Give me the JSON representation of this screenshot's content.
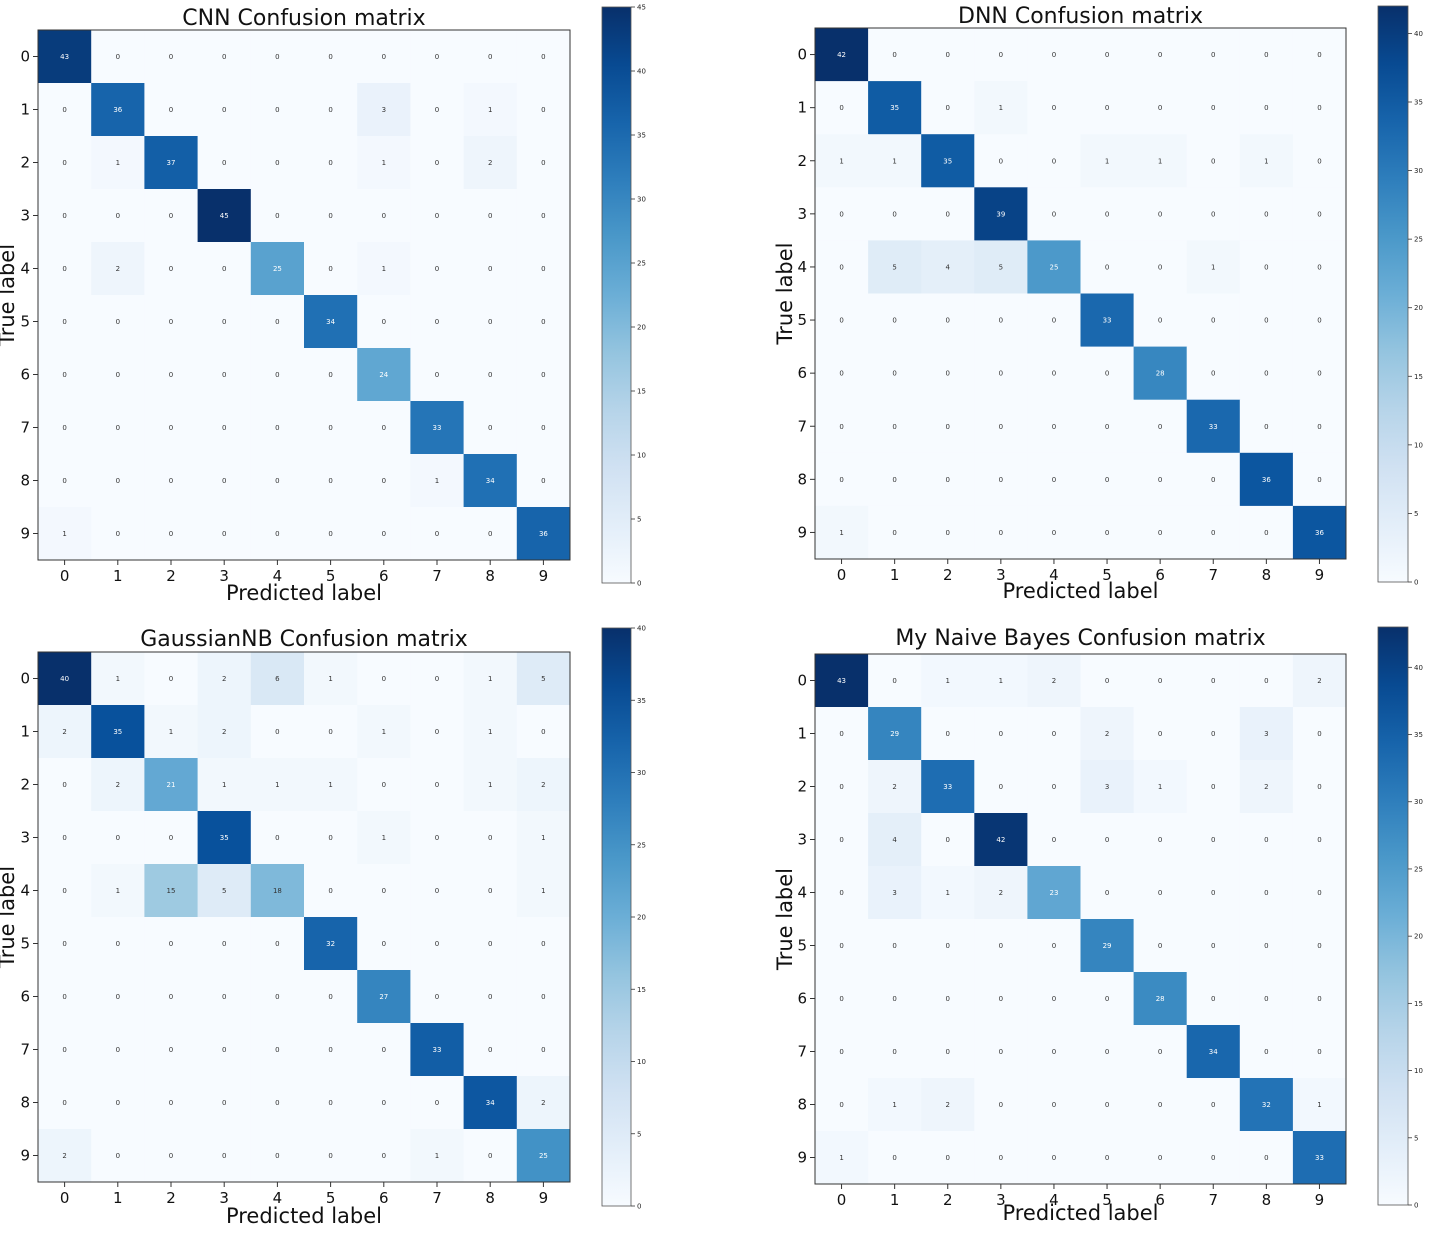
{
  "figure": {
    "xlabel": "Predicted label",
    "ylabel": "True label"
  },
  "chart_data": [
    {
      "type": "heatmap",
      "title": "CNN Confusion matrix",
      "xlabel": "Predicted label",
      "ylabel": "True label",
      "x_categories": [
        "0",
        "1",
        "2",
        "3",
        "4",
        "5",
        "6",
        "7",
        "8",
        "9"
      ],
      "y_categories": [
        "0",
        "1",
        "2",
        "3",
        "4",
        "5",
        "6",
        "7",
        "8",
        "9"
      ],
      "values": [
        [
          43,
          0,
          0,
          0,
          0,
          0,
          0,
          0,
          0,
          0
        ],
        [
          0,
          36,
          0,
          0,
          0,
          0,
          3,
          0,
          1,
          0
        ],
        [
          0,
          1,
          37,
          0,
          0,
          0,
          1,
          0,
          2,
          0
        ],
        [
          0,
          0,
          0,
          45,
          0,
          0,
          0,
          0,
          0,
          0
        ],
        [
          0,
          2,
          0,
          0,
          25,
          0,
          1,
          0,
          0,
          0
        ],
        [
          0,
          0,
          0,
          0,
          0,
          34,
          0,
          0,
          0,
          0
        ],
        [
          0,
          0,
          0,
          0,
          0,
          0,
          24,
          0,
          0,
          0
        ],
        [
          0,
          0,
          0,
          0,
          0,
          0,
          0,
          33,
          0,
          0
        ],
        [
          0,
          0,
          0,
          0,
          0,
          0,
          0,
          1,
          34,
          0
        ],
        [
          1,
          0,
          0,
          0,
          0,
          0,
          0,
          0,
          0,
          36
        ]
      ],
      "colorbar": {
        "min": 0,
        "max": 45,
        "ticks": [
          0,
          5,
          10,
          15,
          20,
          25,
          30,
          35,
          40,
          45
        ]
      }
    },
    {
      "type": "heatmap",
      "title": "DNN Confusion matrix",
      "xlabel": "Predicted label",
      "ylabel": "True label",
      "x_categories": [
        "0",
        "1",
        "2",
        "3",
        "4",
        "5",
        "6",
        "7",
        "8",
        "9"
      ],
      "y_categories": [
        "0",
        "1",
        "2",
        "3",
        "4",
        "5",
        "6",
        "7",
        "8",
        "9"
      ],
      "values": [
        [
          42,
          0,
          0,
          0,
          0,
          0,
          0,
          0,
          0,
          0
        ],
        [
          0,
          35,
          0,
          1,
          0,
          0,
          0,
          0,
          0,
          0
        ],
        [
          1,
          1,
          35,
          0,
          0,
          1,
          1,
          0,
          1,
          0
        ],
        [
          0,
          0,
          0,
          39,
          0,
          0,
          0,
          0,
          0,
          0
        ],
        [
          0,
          5,
          4,
          5,
          25,
          0,
          0,
          1,
          0,
          0
        ],
        [
          0,
          0,
          0,
          0,
          0,
          33,
          0,
          0,
          0,
          0
        ],
        [
          0,
          0,
          0,
          0,
          0,
          0,
          28,
          0,
          0,
          0
        ],
        [
          0,
          0,
          0,
          0,
          0,
          0,
          0,
          33,
          0,
          0
        ],
        [
          0,
          0,
          0,
          0,
          0,
          0,
          0,
          0,
          36,
          0
        ],
        [
          1,
          0,
          0,
          0,
          0,
          0,
          0,
          0,
          0,
          36
        ]
      ],
      "colorbar": {
        "min": 0,
        "max": 42,
        "ticks": [
          0,
          5,
          10,
          15,
          20,
          25,
          30,
          35,
          40
        ]
      }
    },
    {
      "type": "heatmap",
      "title": "GaussianNB Confusion matrix",
      "xlabel": "Predicted label",
      "ylabel": "True label",
      "x_categories": [
        "0",
        "1",
        "2",
        "3",
        "4",
        "5",
        "6",
        "7",
        "8",
        "9"
      ],
      "y_categories": [
        "0",
        "1",
        "2",
        "3",
        "4",
        "5",
        "6",
        "7",
        "8",
        "9"
      ],
      "values": [
        [
          40,
          1,
          0,
          2,
          6,
          1,
          0,
          0,
          1,
          5
        ],
        [
          2,
          35,
          1,
          2,
          0,
          0,
          1,
          0,
          1,
          0
        ],
        [
          0,
          2,
          21,
          1,
          1,
          1,
          0,
          0,
          1,
          2
        ],
        [
          0,
          0,
          0,
          35,
          0,
          0,
          1,
          0,
          0,
          1
        ],
        [
          0,
          1,
          15,
          5,
          18,
          0,
          0,
          0,
          0,
          1
        ],
        [
          0,
          0,
          0,
          0,
          0,
          32,
          0,
          0,
          0,
          0
        ],
        [
          0,
          0,
          0,
          0,
          0,
          0,
          27,
          0,
          0,
          0
        ],
        [
          0,
          0,
          0,
          0,
          0,
          0,
          0,
          33,
          0,
          0
        ],
        [
          0,
          0,
          0,
          0,
          0,
          0,
          0,
          0,
          34,
          2
        ],
        [
          2,
          0,
          0,
          0,
          0,
          0,
          0,
          1,
          0,
          25
        ]
      ],
      "colorbar": {
        "min": 0,
        "max": 40,
        "ticks": [
          0,
          5,
          10,
          15,
          20,
          25,
          30,
          35,
          40
        ]
      }
    },
    {
      "type": "heatmap",
      "title": "My Naive Bayes Confusion matrix",
      "xlabel": "Predicted label",
      "ylabel": "True label",
      "x_categories": [
        "0",
        "1",
        "2",
        "3",
        "4",
        "5",
        "6",
        "7",
        "8",
        "9"
      ],
      "y_categories": [
        "0",
        "1",
        "2",
        "3",
        "4",
        "5",
        "6",
        "7",
        "8",
        "9"
      ],
      "values": [
        [
          43,
          0,
          1,
          1,
          2,
          0,
          0,
          0,
          0,
          2
        ],
        [
          0,
          29,
          0,
          0,
          0,
          2,
          0,
          0,
          3,
          0
        ],
        [
          0,
          2,
          33,
          0,
          0,
          3,
          1,
          0,
          2,
          0
        ],
        [
          0,
          4,
          0,
          42,
          0,
          0,
          0,
          0,
          0,
          0
        ],
        [
          0,
          3,
          1,
          2,
          23,
          0,
          0,
          0,
          0,
          0
        ],
        [
          0,
          0,
          0,
          0,
          0,
          29,
          0,
          0,
          0,
          0
        ],
        [
          0,
          0,
          0,
          0,
          0,
          0,
          28,
          0,
          0,
          0
        ],
        [
          0,
          0,
          0,
          0,
          0,
          0,
          0,
          34,
          0,
          0
        ],
        [
          0,
          1,
          2,
          0,
          0,
          0,
          0,
          0,
          32,
          1
        ],
        [
          1,
          0,
          0,
          0,
          0,
          0,
          0,
          0,
          0,
          33
        ]
      ],
      "colorbar": {
        "min": 0,
        "max": 43,
        "ticks": [
          0,
          5,
          10,
          15,
          20,
          25,
          30,
          35,
          40
        ]
      }
    }
  ]
}
